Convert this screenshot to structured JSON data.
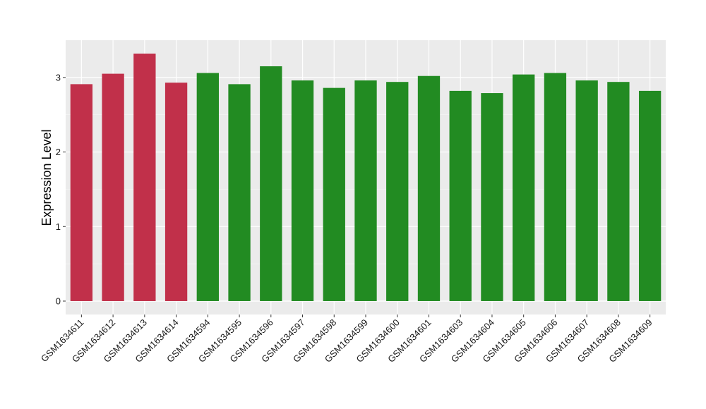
{
  "chart_data": {
    "type": "bar",
    "title": "",
    "xlabel": "",
    "ylabel": "Expression Level",
    "ylim": [
      -0.18,
      3.5
    ],
    "yticks": [
      0,
      1,
      2,
      3
    ],
    "ytick_labels": [
      "0",
      "1",
      "2",
      "3"
    ],
    "grid": true,
    "legend": "none",
    "categories": [
      "GSM1634611",
      "GSM1634612",
      "GSM1634613",
      "GSM1634614",
      "GSM1634594",
      "GSM1634595",
      "GSM1634596",
      "GSM1634597",
      "GSM1634598",
      "GSM1634599",
      "GSM1634600",
      "GSM1634601",
      "GSM1634603",
      "GSM1634604",
      "GSM1634605",
      "GSM1634606",
      "GSM1634607",
      "GSM1634608",
      "GSM1634609"
    ],
    "values": [
      2.91,
      3.05,
      3.32,
      2.93,
      3.06,
      2.91,
      3.15,
      2.96,
      2.86,
      2.96,
      2.94,
      3.02,
      2.82,
      2.79,
      3.04,
      3.06,
      2.96,
      2.94,
      2.82
    ],
    "groups": [
      "red",
      "red",
      "red",
      "red",
      "green",
      "green",
      "green",
      "green",
      "green",
      "green",
      "green",
      "green",
      "green",
      "green",
      "green",
      "green",
      "green",
      "green",
      "green"
    ],
    "colors": {
      "red": "#c1304a",
      "green": "#228b22",
      "panel": "#ebebeb",
      "grid_major": "#ffffff",
      "grid_minor": "#f5f5f5"
    }
  }
}
